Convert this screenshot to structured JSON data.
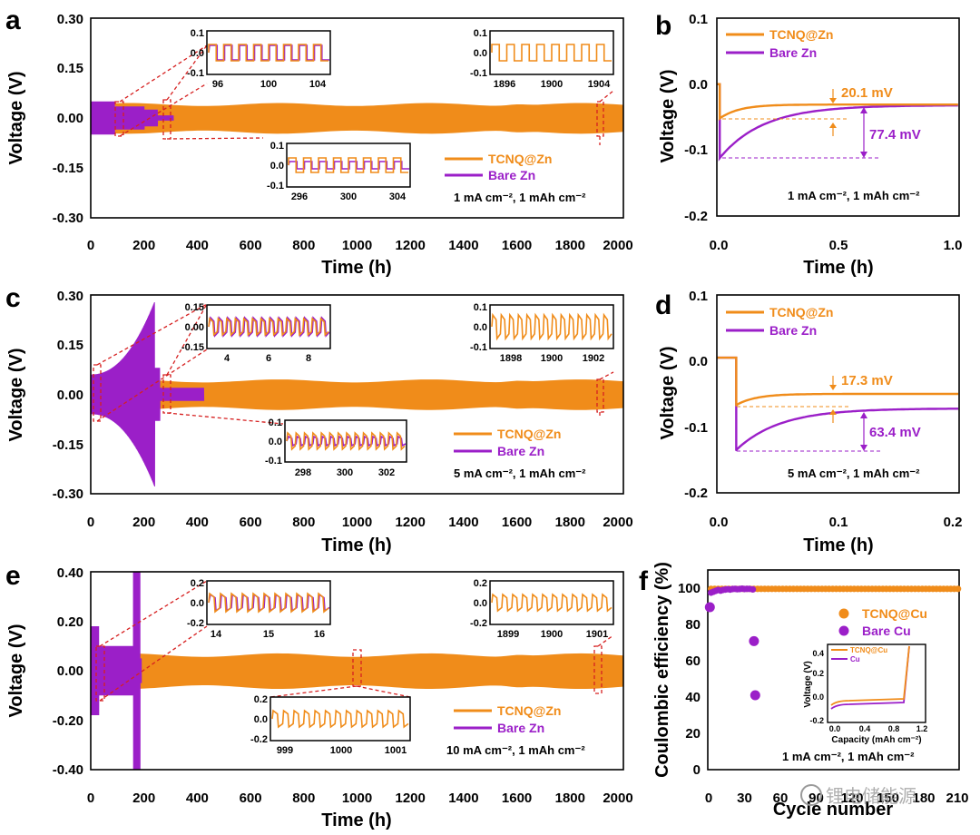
{
  "colors": {
    "tcnq": "#F08C1A",
    "bare": "#9B1FC8",
    "guide": "#D62020",
    "axis": "#000000"
  },
  "watermark": "锂电储能源",
  "chart_data": [
    {
      "id": "a",
      "type": "line",
      "panel_label": "a",
      "xlabel": "Time (h)",
      "ylabel": "Voltage (V)",
      "xlim": [
        0,
        2000
      ],
      "ylim": [
        -0.3,
        0.3
      ],
      "xticks": [
        "0",
        "200",
        "400",
        "600",
        "800",
        "1000",
        "1200",
        "1400",
        "1600",
        "1800",
        "2000"
      ],
      "yticks": [
        "-0.30",
        "-0.15",
        "0.00",
        "0.15",
        "0.30"
      ],
      "condition": "1 mA cm⁻², 1 mAh cm⁻²",
      "series": [
        {
          "name": "TCNQ@Zn",
          "t_end_h": 2000,
          "amplitude_v": 0.045
        },
        {
          "name": "Bare Zn",
          "t_end_h": 310,
          "amplitude_v": 0.05
        }
      ],
      "insets": [
        {
          "id": "a1",
          "yticks": [
            "0.1",
            "0.0",
            "-0.1"
          ],
          "xticks": [
            "96",
            "100",
            "104"
          ],
          "series": [
            "TCNQ@Zn",
            "Bare Zn"
          ]
        },
        {
          "id": "a2",
          "yticks": [
            "0.1",
            "0.0",
            "-0.1"
          ],
          "xticks": [
            "1896",
            "1900",
            "1904"
          ],
          "series": [
            "TCNQ@Zn"
          ]
        },
        {
          "id": "a3",
          "yticks": [
            "0.1",
            "0.0",
            "-0.1"
          ],
          "xticks": [
            "296",
            "300",
            "304"
          ],
          "series": [
            "TCNQ@Zn",
            "Bare Zn"
          ]
        }
      ]
    },
    {
      "id": "b",
      "type": "line",
      "panel_label": "b",
      "xlabel": "Time (h)",
      "ylabel": "Voltage (V)",
      "xlim": [
        0,
        1.0
      ],
      "ylim": [
        -0.2,
        0.1
      ],
      "xticks": [
        "0.0",
        "0.5",
        "1.0"
      ],
      "yticks": [
        "0.1",
        "0.0",
        "-0.1",
        "-0.2"
      ],
      "condition": "1 mA cm⁻², 1 mAh cm⁻²",
      "series": [
        {
          "name": "TCNQ@Zn",
          "nucleation_overpotential_mv": 20.1,
          "min_v": -0.052,
          "plateau_v": -0.031
        },
        {
          "name": "Bare Zn",
          "nucleation_overpotential_mv": 77.4,
          "min_v": -0.112,
          "plateau_v": -0.032
        }
      ],
      "annotations": [
        "20.1 mV",
        "77.4 mV"
      ]
    },
    {
      "id": "c",
      "type": "line",
      "panel_label": "c",
      "xlabel": "Time (h)",
      "ylabel": "Voltage (V)",
      "xlim": [
        0,
        2000
      ],
      "ylim": [
        -0.3,
        0.3
      ],
      "xticks": [
        "0",
        "200",
        "400",
        "600",
        "800",
        "1000",
        "1200",
        "1400",
        "1600",
        "1800",
        "2000"
      ],
      "yticks": [
        "-0.30",
        "-0.15",
        "0.00",
        "0.15",
        "0.30"
      ],
      "condition": "5 mA cm⁻², 1 mAh cm⁻²",
      "series": [
        {
          "name": "TCNQ@Zn",
          "t_end_h": 2000,
          "amplitude_v": 0.045
        },
        {
          "name": "Bare Zn",
          "t_end_h": 425,
          "amplitude_v": 0.28
        }
      ],
      "insets": [
        {
          "id": "c1",
          "yticks": [
            "0.15",
            "0.00",
            "-0.15"
          ],
          "xticks": [
            "4",
            "6",
            "8"
          ],
          "series": [
            "TCNQ@Zn",
            "Bare Zn"
          ]
        },
        {
          "id": "c2",
          "yticks": [
            "0.1",
            "0.0",
            "-0.1"
          ],
          "xticks": [
            "1898",
            "1900",
            "1902"
          ],
          "series": [
            "TCNQ@Zn"
          ]
        },
        {
          "id": "c3",
          "yticks": [
            "0.1",
            "0.0",
            "-0.1"
          ],
          "xticks": [
            "298",
            "300",
            "302"
          ],
          "series": [
            "TCNQ@Zn",
            "Bare Zn"
          ]
        }
      ]
    },
    {
      "id": "d",
      "type": "line",
      "panel_label": "d",
      "xlabel": "Time (h)",
      "ylabel": "Voltage (V)",
      "xlim": [
        0,
        0.2
      ],
      "ylim": [
        -0.2,
        0.1
      ],
      "xticks": [
        "0.0",
        "0.1",
        "0.2"
      ],
      "yticks": [
        "0.1",
        "0.0",
        "-0.1",
        "-0.2"
      ],
      "condition": "5 mA cm⁻², 1 mAh cm⁻²",
      "series": [
        {
          "name": "TCNQ@Zn",
          "nucleation_overpotential_mv": 17.3,
          "min_v": -0.067,
          "plateau_v": -0.05
        },
        {
          "name": "Bare Zn",
          "nucleation_overpotential_mv": 63.4,
          "min_v": -0.135,
          "plateau_v": -0.072
        }
      ],
      "annotations": [
        "17.3 mV",
        "63.4 mV"
      ]
    },
    {
      "id": "e",
      "type": "line",
      "panel_label": "e",
      "xlabel": "Time (h)",
      "ylabel": "Voltage (V)",
      "xlim": [
        0,
        2000
      ],
      "ylim": [
        -0.4,
        0.4
      ],
      "xticks": [
        "0",
        "200",
        "400",
        "600",
        "800",
        "1000",
        "1200",
        "1400",
        "1600",
        "1800",
        "2000"
      ],
      "yticks": [
        "-0.40",
        "-0.20",
        "0.00",
        "0.20",
        "0.40"
      ],
      "condition": "10 mA cm⁻², 1 mAh cm⁻²",
      "series": [
        {
          "name": "TCNQ@Zn",
          "t_end_h": 2000,
          "amplitude_v": 0.07
        },
        {
          "name": "Bare Zn",
          "t_end_h": 190,
          "amplitude_v": 0.4
        }
      ],
      "insets": [
        {
          "id": "e1",
          "yticks": [
            "0.2",
            "0.0",
            "-0.2"
          ],
          "xticks": [
            "14",
            "15",
            "16"
          ],
          "series": [
            "TCNQ@Zn",
            "Bare Zn"
          ]
        },
        {
          "id": "e2",
          "yticks": [
            "0.2",
            "0.0",
            "-0.2"
          ],
          "xticks": [
            "1899",
            "1900",
            "1901"
          ],
          "series": [
            "TCNQ@Zn"
          ]
        },
        {
          "id": "e3",
          "yticks": [
            "0.2",
            "0.0",
            "-0.2"
          ],
          "xticks": [
            "999",
            "1000",
            "1001"
          ],
          "series": [
            "TCNQ@Zn"
          ]
        }
      ]
    },
    {
      "id": "f",
      "type": "scatter",
      "panel_label": "f",
      "xlabel": "Cycle number",
      "ylabel": "Coulombic efficiency (%)",
      "xlim": [
        0,
        210
      ],
      "ylim": [
        0,
        110
      ],
      "xticks": [
        "0",
        "30",
        "60",
        "90",
        "120",
        "150",
        "180",
        "210"
      ],
      "yticks": [
        "0",
        "20",
        "40",
        "60",
        "80",
        "100"
      ],
      "condition": "1 mA cm⁻², 1 mAh cm⁻²",
      "series": [
        {
          "name": "TCNQ@Cu",
          "x_range": [
            1,
            210
          ],
          "value_pct": 99.6
        },
        {
          "name": "Bare Cu",
          "points": [
            [
              1,
              89.5
            ],
            [
              2,
              97.5
            ],
            [
              4,
              98
            ],
            [
              6,
              98.5
            ],
            [
              8,
              99
            ],
            [
              10,
              98.6
            ],
            [
              12,
              99
            ],
            [
              14,
              99.2
            ],
            [
              16,
              99.4
            ],
            [
              18,
              99.2
            ],
            [
              20,
              99.5
            ],
            [
              22,
              99.6
            ],
            [
              24,
              99.4
            ],
            [
              26,
              99.5
            ],
            [
              28,
              99.7
            ],
            [
              30,
              99.5
            ],
            [
              32,
              99.6
            ],
            [
              34,
              99.6
            ],
            [
              37,
              99.3
            ],
            [
              38,
              70.8
            ],
            [
              39,
              41
            ]
          ]
        }
      ],
      "inset": {
        "xlabel": "Capacity (mAh cm⁻²)",
        "ylabel": "Voltage (V)",
        "xticks": [
          "0.0",
          "0.4",
          "0.8",
          "1.2"
        ],
        "yticks": [
          "0.4",
          "0.2",
          "0.0",
          "-0.2"
        ],
        "legend": [
          "TCNQ@Cu",
          "Cu"
        ]
      }
    }
  ]
}
